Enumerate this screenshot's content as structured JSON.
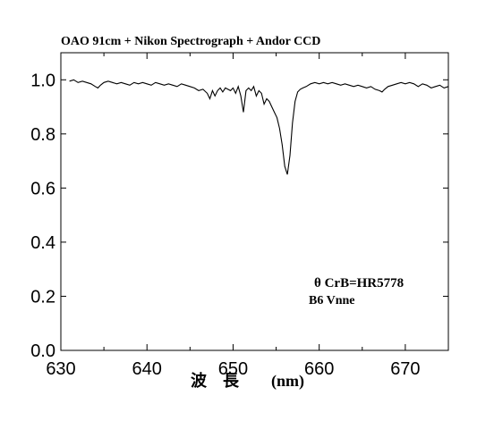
{
  "chart_data": {
    "type": "line",
    "title": "OAO 91cm + Nikon Spectrograph + Andor CCD",
    "xlabel": "波　長　　(nm)",
    "ylabel": "",
    "xlim": [
      630,
      675
    ],
    "ylim": [
      0.0,
      1.1
    ],
    "xticks": [
      "630",
      "640",
      "650",
      "660",
      "670"
    ],
    "yticks": [
      "0.0",
      "0.2",
      "0.4",
      "0.6",
      "0.8",
      "1.0"
    ],
    "annotations": [
      "θ CrB=HR5778",
      "B6 Vnne"
    ],
    "grid": false,
    "series": [
      {
        "x": [
          631.0,
          631.5,
          632.0,
          632.5,
          633.0,
          633.5,
          634.0,
          634.3,
          634.6,
          635.0,
          635.5,
          636.0,
          636.5,
          637.0,
          637.5,
          638.0,
          638.5,
          639.0,
          639.5,
          640.0,
          640.5,
          641.0,
          641.5,
          642.0,
          642.5,
          643.0,
          643.5,
          644.0,
          644.5,
          645.0,
          645.5,
          646.0,
          646.5,
          647.0,
          647.3,
          647.6,
          647.9,
          648.2,
          648.5,
          648.8,
          649.1,
          649.4,
          649.7,
          650.0,
          650.3,
          650.6,
          650.9,
          651.2,
          651.5,
          651.8,
          652.1,
          652.4,
          652.7,
          653.0,
          653.3,
          653.6,
          653.9,
          654.2,
          654.5,
          654.8,
          655.1,
          655.4,
          655.7,
          656.0,
          656.3,
          656.6,
          656.9,
          657.2,
          657.5,
          657.8,
          658.1,
          658.5,
          659.0,
          659.5,
          660.0,
          660.5,
          661.0,
          661.5,
          662.0,
          662.5,
          663.0,
          663.5,
          664.0,
          664.5,
          665.0,
          665.5,
          666.0,
          666.5,
          667.0,
          667.3,
          667.6,
          668.0,
          668.5,
          669.0,
          669.5,
          670.0,
          670.5,
          671.0,
          671.5,
          672.0,
          672.5,
          673.0,
          673.5,
          674.0,
          674.5,
          675.0
        ],
        "y": [
          0.995,
          1.0,
          0.99,
          0.995,
          0.99,
          0.985,
          0.975,
          0.97,
          0.98,
          0.99,
          0.995,
          0.99,
          0.985,
          0.99,
          0.985,
          0.98,
          0.99,
          0.985,
          0.99,
          0.985,
          0.98,
          0.99,
          0.985,
          0.98,
          0.985,
          0.98,
          0.975,
          0.985,
          0.98,
          0.975,
          0.97,
          0.96,
          0.965,
          0.95,
          0.93,
          0.96,
          0.94,
          0.96,
          0.97,
          0.955,
          0.97,
          0.965,
          0.96,
          0.97,
          0.95,
          0.975,
          0.94,
          0.88,
          0.96,
          0.97,
          0.96,
          0.975,
          0.94,
          0.96,
          0.95,
          0.91,
          0.93,
          0.92,
          0.9,
          0.88,
          0.86,
          0.82,
          0.76,
          0.68,
          0.65,
          0.72,
          0.84,
          0.92,
          0.955,
          0.965,
          0.97,
          0.975,
          0.985,
          0.99,
          0.985,
          0.99,
          0.985,
          0.99,
          0.985,
          0.98,
          0.985,
          0.98,
          0.975,
          0.98,
          0.975,
          0.97,
          0.975,
          0.965,
          0.96,
          0.955,
          0.965,
          0.975,
          0.98,
          0.985,
          0.99,
          0.985,
          0.99,
          0.985,
          0.975,
          0.985,
          0.98,
          0.97,
          0.975,
          0.98,
          0.97,
          0.975
        ]
      }
    ]
  }
}
